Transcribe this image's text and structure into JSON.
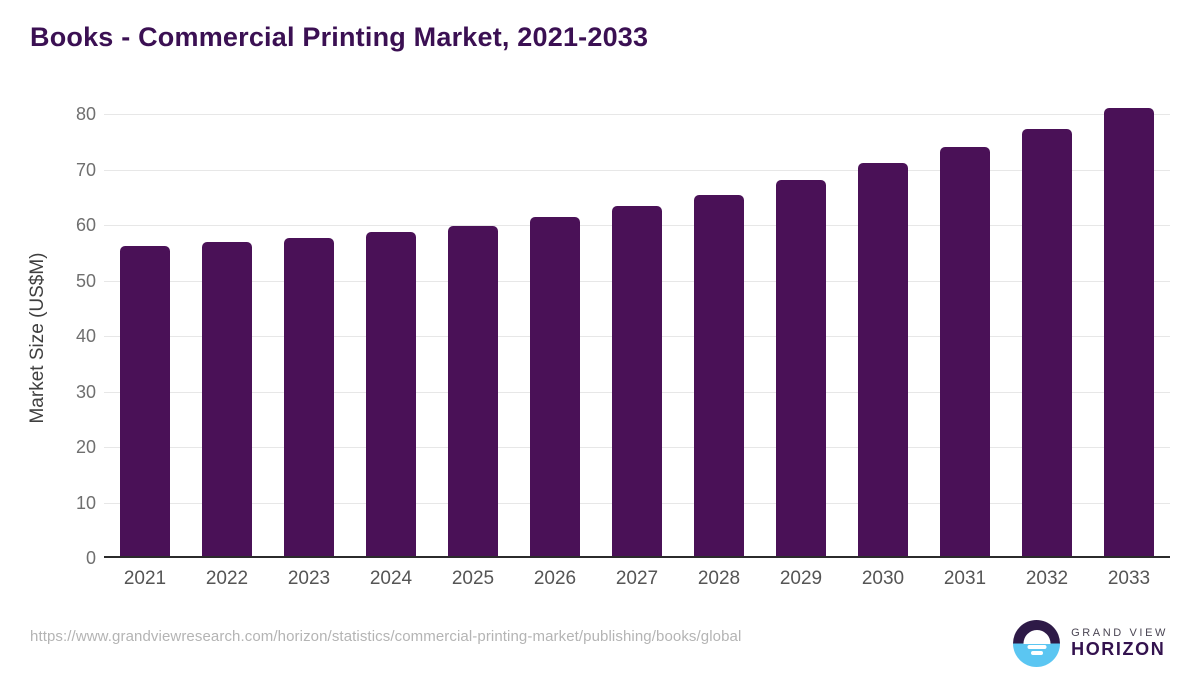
{
  "title": "Books - Commercial Printing Market, 2021-2033",
  "chart_data": {
    "type": "bar",
    "title": "Books - Commercial Printing Market, 2021-2033",
    "categories": [
      "2021",
      "2022",
      "2023",
      "2024",
      "2025",
      "2026",
      "2027",
      "2028",
      "2029",
      "2030",
      "2031",
      "2032",
      "2033"
    ],
    "values": [
      55.9,
      56.6,
      57.3,
      58.4,
      59.5,
      61.1,
      63.0,
      65.1,
      67.7,
      70.8,
      73.7,
      77.0,
      80.7
    ],
    "xlabel": "",
    "ylabel": "Market Size (US$M)",
    "yticks": [
      0,
      10,
      20,
      30,
      40,
      50,
      60,
      70,
      80
    ],
    "ylim": [
      0,
      80
    ],
    "grid": true,
    "legend": "none",
    "bar_color": "#4a1157"
  },
  "footer": {
    "source_url": "https://www.grandviewresearch.com/horizon/statistics/commercial-printing-market/publishing/books/global",
    "logo": {
      "line1": "GRAND VIEW",
      "line2": "HORIZON"
    }
  },
  "colors": {
    "bar": "#4a1157",
    "title": "#3b1053",
    "gridline": "#e7e7e7",
    "baseline": "#2b2b2b",
    "tick_text": "#6f6f6f",
    "x_tick_text": "#555555",
    "axis_title_text": "#3f3f3f",
    "url_text": "#b4b4b4",
    "logo_dark": "#2e1a47",
    "logo_blue": "#5bc6f2"
  }
}
